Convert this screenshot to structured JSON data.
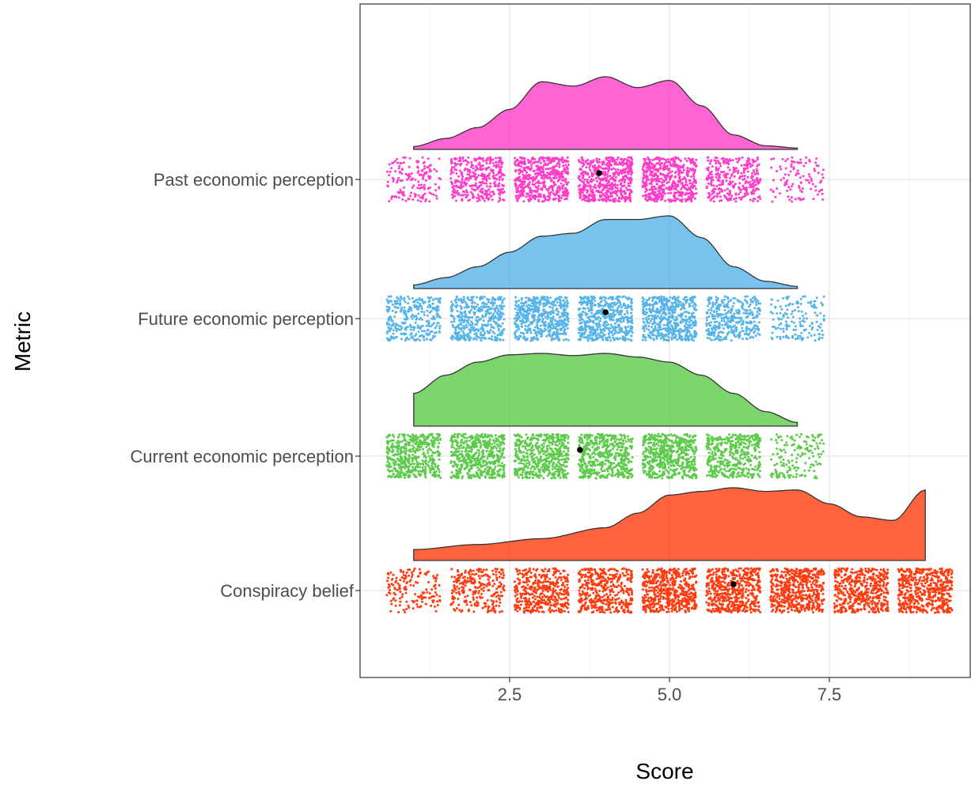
{
  "chart_data": {
    "type": "raincloud",
    "xlabel": "Score",
    "ylabel": "Metric",
    "xlim": [
      0.0,
      9.5
    ],
    "xticks": [
      2.5,
      5.0,
      7.5
    ],
    "xtick_labels": [
      "2.5",
      "5.0",
      "7.5"
    ],
    "grid": true,
    "legend": "none",
    "categories": [
      "Conspiracy belief",
      "Current economic perception",
      "Future economic perception",
      "Past economic perception"
    ],
    "series": [
      {
        "name": "Past economic perception",
        "color": "#FF3DC8",
        "mean": 3.9,
        "scale": [
          1,
          7
        ],
        "response_levels": [
          1,
          2,
          3,
          4,
          5,
          6,
          7
        ],
        "relative_frequency": [
          0.3,
          0.7,
          1.0,
          1.0,
          1.0,
          0.6,
          0.2
        ],
        "density": {
          "x": [
            1.0,
            1.5,
            2.0,
            2.5,
            3.0,
            3.5,
            4.0,
            4.5,
            5.0,
            5.5,
            6.0,
            6.5,
            7.0
          ],
          "y": [
            0.04,
            0.15,
            0.3,
            0.55,
            0.93,
            0.87,
            1.0,
            0.85,
            0.95,
            0.6,
            0.2,
            0.05,
            0.02
          ]
        }
      },
      {
        "name": "Future economic perception",
        "color": "#56B4E9",
        "mean": 4.0,
        "scale": [
          1,
          7
        ],
        "response_levels": [
          1,
          2,
          3,
          4,
          5,
          6,
          7
        ],
        "relative_frequency": [
          0.6,
          0.8,
          1.0,
          1.0,
          1.0,
          0.7,
          0.3
        ],
        "density": {
          "x": [
            1.0,
            1.5,
            2.0,
            2.5,
            3.0,
            3.5,
            4.0,
            4.5,
            5.0,
            5.5,
            6.0,
            6.5,
            7.0
          ],
          "y": [
            0.05,
            0.15,
            0.3,
            0.5,
            0.72,
            0.76,
            0.95,
            0.95,
            1.0,
            0.7,
            0.3,
            0.1,
            0.03
          ]
        }
      },
      {
        "name": "Current economic perception",
        "color": "#5CCB4A",
        "mean": 3.6,
        "scale": [
          1,
          7
        ],
        "response_levels": [
          1,
          2,
          3,
          4,
          5,
          6,
          7
        ],
        "relative_frequency": [
          0.9,
          1.0,
          1.0,
          1.0,
          1.0,
          0.8,
          0.3
        ],
        "density": {
          "x": [
            1.0,
            1.5,
            2.0,
            2.5,
            3.0,
            3.5,
            4.0,
            4.5,
            5.0,
            5.5,
            6.0,
            6.5,
            7.0
          ],
          "y": [
            0.45,
            0.7,
            0.88,
            0.98,
            1.0,
            0.97,
            1.0,
            0.95,
            0.88,
            0.7,
            0.45,
            0.2,
            0.05
          ]
        }
      },
      {
        "name": "Conspiracy belief",
        "color": "#FF3B0F",
        "mean": 6.0,
        "scale": [
          1,
          9
        ],
        "response_levels": [
          1,
          2,
          3,
          4,
          5,
          6,
          7,
          8,
          9
        ],
        "relative_frequency": [
          0.3,
          0.5,
          0.8,
          0.8,
          1.0,
          1.0,
          1.0,
          0.9,
          1.0
        ],
        "density": {
          "x": [
            1.0,
            2.0,
            3.0,
            4.0,
            4.5,
            5.0,
            5.5,
            6.0,
            6.5,
            7.0,
            7.5,
            8.0,
            8.5,
            9.0
          ],
          "y": [
            0.15,
            0.22,
            0.3,
            0.45,
            0.65,
            0.9,
            0.95,
            1.0,
            0.95,
            0.97,
            0.78,
            0.6,
            0.55,
            0.97
          ]
        }
      }
    ]
  }
}
